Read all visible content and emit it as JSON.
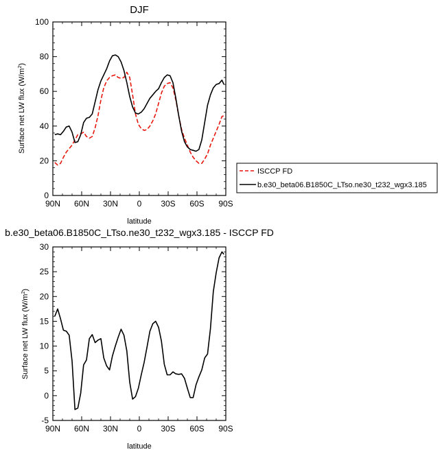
{
  "chart_data": [
    {
      "type": "line",
      "title": "DJF",
      "xlabel": "latitude",
      "ylabel": "Surface net LW flux (W/m",
      "ylabel_sup": "2",
      "ylabel_close": ")",
      "xlim": [
        90,
        -90
      ],
      "ylim": [
        0,
        100
      ],
      "x_tick_values": [
        90,
        60,
        30,
        0,
        -30,
        -60,
        -90
      ],
      "x_tick_labels": [
        "90N",
        "60N",
        "30N",
        "0",
        "30S",
        "60S",
        "90S"
      ],
      "y_tick_values": [
        0,
        20,
        40,
        60,
        80,
        100
      ],
      "y_tick_labels": [
        "0",
        "20",
        "40",
        "60",
        "80",
        "100"
      ],
      "legend_position": "right",
      "series": [
        {
          "name": "ISCCP FD",
          "color": "#e8160c",
          "dash": "dashed",
          "x": [
            88,
            85,
            82,
            79,
            76,
            73,
            70,
            67,
            64,
            61,
            58,
            55,
            52,
            49,
            46,
            43,
            40,
            37,
            34,
            31,
            28,
            25,
            22,
            19,
            16,
            13,
            10,
            7,
            4,
            1,
            -2,
            -5,
            -8,
            -11,
            -14,
            -17,
            -20,
            -23,
            -26,
            -29,
            -32,
            -35,
            -38,
            -41,
            -44,
            -47,
            -50,
            -53,
            -56,
            -59,
            -62,
            -65,
            -68,
            -71,
            -74,
            -77,
            -80,
            -83,
            -86,
            -88
          ],
          "y": [
            19,
            17.5,
            18.5,
            22,
            25,
            27,
            29,
            32,
            35,
            35.5,
            36.5,
            34,
            33,
            34,
            39,
            46,
            55,
            62,
            66,
            68,
            69,
            69.5,
            68,
            67.5,
            68,
            71,
            68,
            58,
            47,
            41,
            38.5,
            37.5,
            38,
            40,
            43,
            47,
            53,
            59,
            63,
            64.5,
            65,
            62,
            55,
            46,
            38,
            33,
            29,
            25,
            22,
            20,
            18.5,
            18.5,
            21,
            24,
            29,
            33,
            37,
            41,
            45.5,
            46
          ]
        },
        {
          "name": "b.e30_beta06.B1850C_LTso.ne30_t232_wgx3.185",
          "color": "#000000",
          "dash": "solid",
          "x": [
            88,
            85,
            82,
            79,
            76,
            73,
            70,
            67,
            64,
            61,
            58,
            55,
            52,
            49,
            46,
            43,
            40,
            37,
            34,
            31,
            28,
            25,
            22,
            19,
            16,
            13,
            10,
            7,
            4,
            1,
            -2,
            -5,
            -8,
            -11,
            -14,
            -17,
            -20,
            -23,
            -26,
            -29,
            -32,
            -35,
            -38,
            -41,
            -44,
            -47,
            -50,
            -53,
            -56,
            -59,
            -62,
            -65,
            -68,
            -71,
            -74,
            -77,
            -80,
            -83,
            -86,
            -88
          ],
          "y": [
            35,
            35.5,
            35,
            37,
            39.5,
            40,
            36.5,
            30.5,
            31,
            35,
            42,
            44.5,
            45,
            47,
            54,
            61,
            66,
            69.5,
            73,
            77.5,
            80.5,
            81,
            80,
            77,
            72,
            65,
            57,
            51,
            47.5,
            47,
            48,
            50,
            53,
            56,
            58,
            60,
            61.5,
            65,
            68,
            69.5,
            69,
            65,
            56,
            46,
            37,
            31,
            28,
            26.5,
            26,
            25.5,
            26.5,
            32,
            42,
            52,
            58,
            62,
            64,
            64.5,
            66.5,
            64
          ]
        }
      ]
    },
    {
      "type": "line",
      "title": "b.e30_beta06.B1850C_LTso.ne30_t232_wgx3.185 - ISCCP FD",
      "xlabel": "latitude",
      "ylabel": "Surface net LW flux (W/m",
      "ylabel_sup": "2",
      "ylabel_close": ")",
      "xlim": [
        90,
        -90
      ],
      "ylim": [
        -5,
        30
      ],
      "x_tick_values": [
        90,
        60,
        30,
        0,
        -30,
        -60,
        -90
      ],
      "x_tick_labels": [
        "90N",
        "60N",
        "30N",
        "0",
        "30S",
        "60S",
        "90S"
      ],
      "y_tick_values": [
        -5,
        0,
        5,
        10,
        15,
        20,
        25,
        30
      ],
      "y_tick_labels": [
        "-5",
        "0",
        "5",
        "10",
        "15",
        "20",
        "25",
        "30"
      ],
      "series": [
        {
          "color": "#000000",
          "x": [
            88,
            85,
            82,
            79,
            76,
            73,
            70,
            67,
            64,
            61,
            58,
            55,
            52,
            49,
            46,
            43,
            40,
            37,
            34,
            31,
            28,
            25,
            22,
            19,
            16,
            13,
            10,
            7,
            4,
            1,
            -2,
            -5,
            -8,
            -11,
            -14,
            -17,
            -20,
            -23,
            -26,
            -29,
            -32,
            -35,
            -38,
            -41,
            -44,
            -47,
            -50,
            -53,
            -56,
            -59,
            -62,
            -65,
            -68,
            -71,
            -74,
            -77,
            -80,
            -83,
            -86,
            -88
          ],
          "y": [
            16,
            17.5,
            15.5,
            13.2,
            13,
            12.2,
            7,
            -2.8,
            -2.5,
            0.5,
            6.2,
            7.2,
            11.5,
            12.3,
            10.7,
            11.2,
            11.5,
            7.6,
            6,
            5.2,
            8,
            10,
            11.8,
            13.4,
            12.2,
            9,
            2.7,
            -0.7,
            -0.2,
            1.5,
            4.2,
            6.7,
            9.8,
            13,
            14.5,
            15,
            13.8,
            11,
            6.3,
            4.2,
            4.2,
            4.8,
            4.4,
            4.3,
            4.4,
            3.5,
            1.5,
            -0.4,
            -0.4,
            2.2,
            3.8,
            5.2,
            7.6,
            8.4,
            13.5,
            21,
            24.8,
            27.8,
            29,
            28.5
          ]
        }
      ]
    }
  ]
}
